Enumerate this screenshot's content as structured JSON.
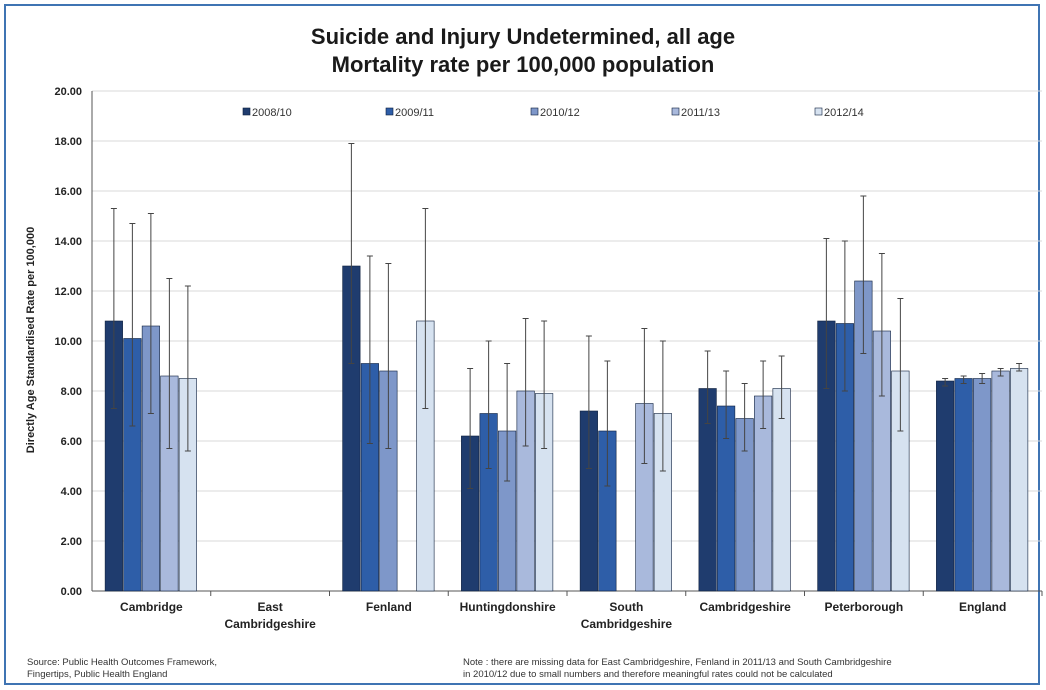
{
  "chart_data": {
    "type": "bar",
    "title": "Suicide and Injury Undetermined, all age",
    "subtitle": "Mortality rate per 100,000 population",
    "ylabel": "Directly Age Standardised Rate per 100,000",
    "ylim": [
      0,
      20
    ],
    "yticks": [
      "0.00",
      "2.00",
      "4.00",
      "6.00",
      "8.00",
      "10.00",
      "12.00",
      "14.00",
      "16.00",
      "18.00",
      "20.00"
    ],
    "grid": true,
    "legend_position": "top",
    "categories": [
      [
        "Cambridge"
      ],
      [
        "East",
        "Cambridgeshire"
      ],
      [
        "Fenland"
      ],
      [
        "Huntingdonshire"
      ],
      [
        "South",
        "Cambridgeshire"
      ],
      [
        "Cambridgeshire"
      ],
      [
        "Peterborough"
      ],
      [
        "England"
      ]
    ],
    "series": [
      {
        "name": "2008/10",
        "color": "#1f3c6e",
        "values": [
          10.8,
          null,
          13.0,
          6.2,
          7.2,
          8.1,
          10.8,
          8.4
        ],
        "lower": [
          7.3,
          null,
          9.1,
          4.1,
          4.9,
          6.7,
          8.1,
          8.2
        ],
        "upper": [
          15.3,
          null,
          17.9,
          8.9,
          10.2,
          9.6,
          14.1,
          8.5
        ]
      },
      {
        "name": "2009/11",
        "color": "#2e5ea8",
        "values": [
          10.1,
          null,
          9.1,
          7.1,
          6.4,
          7.4,
          10.7,
          8.5
        ],
        "lower": [
          6.6,
          null,
          5.9,
          4.9,
          4.2,
          6.1,
          8.0,
          8.3
        ],
        "upper": [
          14.7,
          null,
          13.4,
          10.0,
          9.2,
          8.8,
          14.0,
          8.6
        ]
      },
      {
        "name": "2010/12",
        "color": "#7e97c9",
        "values": [
          10.6,
          null,
          8.8,
          6.4,
          null,
          6.9,
          12.4,
          8.5
        ],
        "lower": [
          7.1,
          null,
          5.7,
          4.4,
          null,
          5.6,
          9.5,
          8.3
        ],
        "upper": [
          15.1,
          null,
          13.1,
          9.1,
          null,
          8.3,
          15.8,
          8.7
        ]
      },
      {
        "name": "2011/13",
        "color": "#a9b9dc",
        "values": [
          8.6,
          null,
          null,
          8.0,
          7.5,
          7.8,
          10.4,
          8.8
        ],
        "lower": [
          5.7,
          null,
          null,
          5.8,
          5.1,
          6.5,
          7.8,
          8.6
        ],
        "upper": [
          12.5,
          null,
          null,
          10.9,
          10.5,
          9.2,
          13.5,
          8.9
        ]
      },
      {
        "name": "2012/14",
        "color": "#d6e2f0",
        "values": [
          8.5,
          null,
          10.8,
          7.9,
          7.1,
          8.1,
          8.8,
          8.9
        ],
        "lower": [
          5.6,
          null,
          7.3,
          5.7,
          4.8,
          6.9,
          6.4,
          8.8
        ],
        "upper": [
          12.2,
          null,
          15.3,
          10.8,
          10.0,
          9.4,
          11.7,
          9.1
        ]
      }
    ]
  },
  "footer": {
    "source_line1": "Source:  Public Health Outcomes Framework,",
    "source_line2": "Fingertips, Public Health England",
    "note_line1": "Note : there are missing data for East Cambridgeshire, Fenland in 2011/13 and South Cambridgeshire",
    "note_line2": "in 2010/12 due to small numbers and therefore meaningful rates could not be calculated"
  },
  "colors": {
    "frame": "#3f74b3",
    "grid": "#d9d9d9",
    "axis": "#555555",
    "bar_border": "#0d1f3d"
  }
}
